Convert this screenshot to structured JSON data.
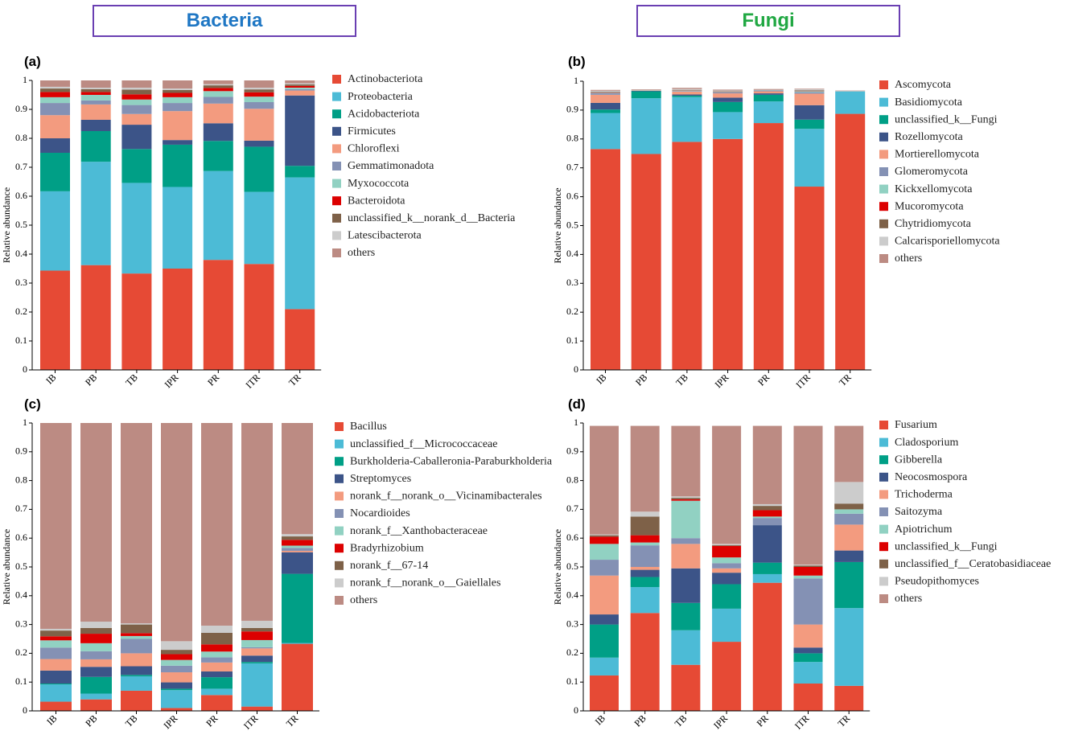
{
  "titles": {
    "bacteria": "Bacteria",
    "fungi": "Fungi"
  },
  "chart_data": [
    {
      "panel": "(a)",
      "type": "bar",
      "stacked": true,
      "ylabel": "Relative abundance",
      "ylim": [
        0,
        1
      ],
      "yticks": [
        "0",
        "0.1",
        "0.2",
        "0.3",
        "0.4",
        "0.5",
        "0.6",
        "0.7",
        "0.8",
        "0.9",
        "1"
      ],
      "categories": [
        "IB",
        "PB",
        "TB",
        "IPR",
        "PR",
        "ITR",
        "TR"
      ],
      "series": [
        {
          "name": "Actinobacteriota",
          "color": "#e64a35",
          "values": [
            0.343,
            0.362,
            0.333,
            0.35,
            0.38,
            0.366,
            0.21
          ]
        },
        {
          "name": "Proteobacteria",
          "color": "#4cbbd6",
          "values": [
            0.274,
            0.357,
            0.313,
            0.282,
            0.307,
            0.249,
            0.455
          ]
        },
        {
          "name": "Acidobacteriota",
          "color": "#009f86",
          "values": [
            0.133,
            0.106,
            0.117,
            0.146,
            0.104,
            0.156,
            0.04
          ]
        },
        {
          "name": "Firmicutes",
          "color": "#3c5488",
          "values": [
            0.05,
            0.039,
            0.084,
            0.016,
            0.061,
            0.021,
            0.243
          ]
        },
        {
          "name": "Chloroflexi",
          "color": "#f39b7f",
          "values": [
            0.08,
            0.053,
            0.037,
            0.1,
            0.068,
            0.11,
            0.017
          ]
        },
        {
          "name": "Gemmatimonadota",
          "color": "#8491b4",
          "values": [
            0.042,
            0.014,
            0.031,
            0.028,
            0.023,
            0.023,
            0.005
          ]
        },
        {
          "name": "Myxococcota",
          "color": "#91d1c2",
          "values": [
            0.02,
            0.019,
            0.019,
            0.02,
            0.02,
            0.019,
            0.005
          ]
        },
        {
          "name": "Bacteroidota",
          "color": "#dc0000",
          "values": [
            0.018,
            0.01,
            0.018,
            0.015,
            0.011,
            0.015,
            0.006
          ]
        },
        {
          "name": "unclassified_k__norank_d__Bacteria",
          "color": "#7e6148",
          "values": [
            0.012,
            0.01,
            0.016,
            0.01,
            0.009,
            0.01,
            0.005
          ]
        },
        {
          "name": "Latescibacterota",
          "color": "#cccccc",
          "values": [
            0.006,
            0.005,
            0.007,
            0.005,
            0.004,
            0.006,
            0.004
          ]
        },
        {
          "name": "others",
          "color": "#bc8b83",
          "values": [
            0.022,
            0.025,
            0.025,
            0.028,
            0.013,
            0.025,
            0.01
          ]
        }
      ]
    },
    {
      "panel": "(b)",
      "type": "bar",
      "stacked": true,
      "ylabel": "Relative abundance",
      "ylim": [
        0,
        1
      ],
      "yticks": [
        "0",
        "0.1",
        "0.2",
        "0.3",
        "0.4",
        "0.5",
        "0.6",
        "0.7",
        "0.8",
        "0.9",
        "1"
      ],
      "categories": [
        "IB",
        "PB",
        "TB",
        "IPR",
        "PR",
        "ITR",
        "TR"
      ],
      "series": [
        {
          "name": "Ascomycota",
          "color": "#e64a35",
          "values": [
            0.765,
            0.748,
            0.79,
            0.8,
            0.855,
            0.635,
            0.887
          ]
        },
        {
          "name": "Basidiomycota",
          "color": "#4cbbd6",
          "values": [
            0.125,
            0.193,
            0.155,
            0.093,
            0.075,
            0.2,
            0.078
          ]
        },
        {
          "name": "unclassified_k__Fungi",
          "color": "#009f86",
          "values": [
            0.012,
            0.024,
            0.005,
            0.035,
            0.023,
            0.032,
            0.0
          ]
        },
        {
          "name": "Rozellomycota",
          "color": "#3c5488",
          "values": [
            0.023,
            0.002,
            0.004,
            0.015,
            0.005,
            0.05,
            0.0
          ]
        },
        {
          "name": "Mortierellomycota",
          "color": "#f39b7f",
          "values": [
            0.028,
            0.001,
            0.01,
            0.015,
            0.007,
            0.04,
            0.001
          ]
        },
        {
          "name": "Glomeromycota",
          "color": "#8491b4",
          "values": [
            0.005,
            0.0,
            0.002,
            0.003,
            0.003,
            0.005,
            0.0
          ]
        },
        {
          "name": "Kickxellomycota",
          "color": "#91d1c2",
          "values": [
            0.002,
            0.001,
            0.002,
            0.002,
            0.001,
            0.003,
            0.0
          ]
        },
        {
          "name": "Mucoromycota",
          "color": "#dc0000",
          "values": [
            0.001,
            0.0,
            0.001,
            0.001,
            0.0,
            0.001,
            0.0
          ]
        },
        {
          "name": "Chytridiomycota",
          "color": "#7e6148",
          "values": [
            0.002,
            0.0,
            0.001,
            0.001,
            0.0,
            0.002,
            0.0
          ]
        },
        {
          "name": "Calcarisporiellomycota",
          "color": "#cccccc",
          "values": [
            0.004,
            0.001,
            0.003,
            0.003,
            0.001,
            0.004,
            0.001
          ]
        },
        {
          "name": "others",
          "color": "#bc8b83",
          "values": [
            0.003,
            0.002,
            0.004,
            0.003,
            0.003,
            0.002,
            0.001
          ]
        }
      ]
    },
    {
      "panel": "(c)",
      "type": "bar",
      "stacked": true,
      "ylabel": "Relative abundance",
      "ylim": [
        0,
        1
      ],
      "yticks": [
        "0",
        "0.1",
        "0.2",
        "0.3",
        "0.4",
        "0.5",
        "0.6",
        "0.7",
        "0.8",
        "0.9",
        "1"
      ],
      "categories": [
        "IB",
        "PB",
        "TB",
        "IPR",
        "PR",
        "ITR",
        "TR"
      ],
      "series": [
        {
          "name": "Bacillus",
          "color": "#e64a35",
          "values": [
            0.032,
            0.04,
            0.07,
            0.01,
            0.055,
            0.015,
            0.233
          ]
        },
        {
          "name": "unclassified_f__Micrococcaceae",
          "color": "#4cbbd6",
          "values": [
            0.06,
            0.02,
            0.05,
            0.062,
            0.022,
            0.15,
            0.003
          ]
        },
        {
          "name": "Burkholderia-Caballeronia-Paraburkholderia",
          "color": "#009f86",
          "values": [
            0.003,
            0.058,
            0.005,
            0.005,
            0.04,
            0.005,
            0.24
          ]
        },
        {
          "name": "Streptomyces",
          "color": "#3c5488",
          "values": [
            0.045,
            0.035,
            0.03,
            0.022,
            0.02,
            0.022,
            0.075
          ]
        },
        {
          "name": "norank_f__norank_o__Vicinamibacterales",
          "color": "#f39b7f",
          "values": [
            0.04,
            0.026,
            0.045,
            0.035,
            0.031,
            0.025,
            0.005
          ]
        },
        {
          "name": "Nocardioides",
          "color": "#8491b4",
          "values": [
            0.04,
            0.028,
            0.05,
            0.023,
            0.018,
            0.004,
            0.01
          ]
        },
        {
          "name": "norank_f__Xanthobacteraceae",
          "color": "#91d1c2",
          "values": [
            0.025,
            0.028,
            0.01,
            0.02,
            0.02,
            0.025,
            0.008
          ]
        },
        {
          "name": "Bradyrhizobium",
          "color": "#dc0000",
          "values": [
            0.014,
            0.033,
            0.01,
            0.02,
            0.025,
            0.03,
            0.02
          ]
        },
        {
          "name": "norank_f__67-14",
          "color": "#7e6148",
          "values": [
            0.02,
            0.02,
            0.03,
            0.015,
            0.04,
            0.012,
            0.012
          ]
        },
        {
          "name": "norank_f__norank_o__Gaiellales",
          "color": "#cccccc",
          "values": [
            0.006,
            0.022,
            0.004,
            0.03,
            0.025,
            0.025,
            0.008
          ]
        },
        {
          "name": "others",
          "color": "#bc8b83",
          "values": [
            0.715,
            0.69,
            0.696,
            0.758,
            0.704,
            0.687,
            0.386
          ]
        }
      ]
    },
    {
      "panel": "(d)",
      "type": "bar",
      "stacked": true,
      "ylabel": "Relative abundance",
      "ylim": [
        0,
        1
      ],
      "yticks": [
        "0",
        "0.1",
        "0.2",
        "0.3",
        "0.4",
        "0.5",
        "0.6",
        "0.7",
        "0.8",
        "0.9",
        "1"
      ],
      "categories": [
        "IB",
        "PB",
        "TB",
        "IPR",
        "PR",
        "ITR",
        "TR"
      ],
      "series": [
        {
          "name": "Fusarium",
          "color": "#e64a35",
          "values": [
            0.123,
            0.34,
            0.16,
            0.24,
            0.445,
            0.095,
            0.087
          ]
        },
        {
          "name": "Cladosporium",
          "color": "#4cbbd6",
          "values": [
            0.062,
            0.09,
            0.12,
            0.115,
            0.03,
            0.075,
            0.27
          ]
        },
        {
          "name": "Gibberella",
          "color": "#009f86",
          "values": [
            0.115,
            0.035,
            0.095,
            0.085,
            0.04,
            0.03,
            0.16
          ]
        },
        {
          "name": "Neocosmospora",
          "color": "#3c5488",
          "values": [
            0.035,
            0.025,
            0.12,
            0.04,
            0.13,
            0.02,
            0.04
          ]
        },
        {
          "name": "Trichoderma",
          "color": "#f39b7f",
          "values": [
            0.135,
            0.01,
            0.085,
            0.015,
            0.0,
            0.08,
            0.09
          ]
        },
        {
          "name": "Saitozyma",
          "color": "#8491b4",
          "values": [
            0.055,
            0.075,
            0.02,
            0.018,
            0.025,
            0.16,
            0.038
          ]
        },
        {
          "name": "Apiotrichum",
          "color": "#91d1c2",
          "values": [
            0.055,
            0.01,
            0.13,
            0.02,
            0.005,
            0.01,
            0.015
          ]
        },
        {
          "name": "unclassified_k__Fungi",
          "color": "#dc0000",
          "values": [
            0.025,
            0.025,
            0.005,
            0.04,
            0.022,
            0.03,
            0.0
          ]
        },
        {
          "name": "unclassified_f__Ceratobasidiaceae",
          "color": "#7e6148",
          "values": [
            0.005,
            0.065,
            0.005,
            0.003,
            0.015,
            0.005,
            0.02
          ]
        },
        {
          "name": "Pseudopithomyces",
          "color": "#cccccc",
          "values": [
            0.003,
            0.017,
            0.005,
            0.004,
            0.006,
            0.003,
            0.075
          ]
        },
        {
          "name": "others",
          "color": "#bc8b83",
          "values": [
            0.377,
            0.298,
            0.245,
            0.41,
            0.272,
            0.482,
            0.195
          ]
        }
      ]
    }
  ]
}
